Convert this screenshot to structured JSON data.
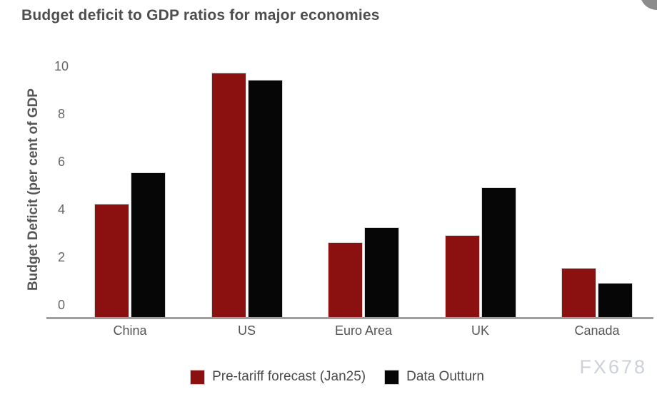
{
  "page": {
    "background": "#ffffff"
  },
  "header": {
    "title": "Budget deficit to GDP ratios for major economies"
  },
  "chart_data": {
    "type": "bar",
    "title": "Budget deficit to GDP ratios for major economies",
    "xlabel": "",
    "ylabel": "Budget Deficit (per cent of GDP",
    "categories": [
      "China",
      "US",
      "Euro Area",
      "UK",
      "Canada"
    ],
    "series": [
      {
        "name": "Pre-tariff forecast (Jan25)",
        "color": "#8B1111",
        "values": [
          4.3,
          9.8,
          2.7,
          3.0,
          1.6
        ]
      },
      {
        "name": "Data Outturn",
        "color": "#060606",
        "values": [
          5.6,
          9.5,
          3.3,
          5.0,
          1.0
        ]
      }
    ],
    "yticks": [
      0,
      2,
      4,
      6,
      8,
      10
    ],
    "ylim": [
      0,
      10
    ],
    "grid": false,
    "legend_position": "bottom"
  },
  "colors": {
    "axis_line": "#9e9e9e",
    "title_text": "#4d4d4d",
    "tick_text": "#666666",
    "category_text": "#555555",
    "legend_text": "#4a4a4a",
    "watermark_text": "#ccd1d9",
    "corner_button": "#8c8c8c"
  },
  "watermark": {
    "text": "FX678"
  }
}
